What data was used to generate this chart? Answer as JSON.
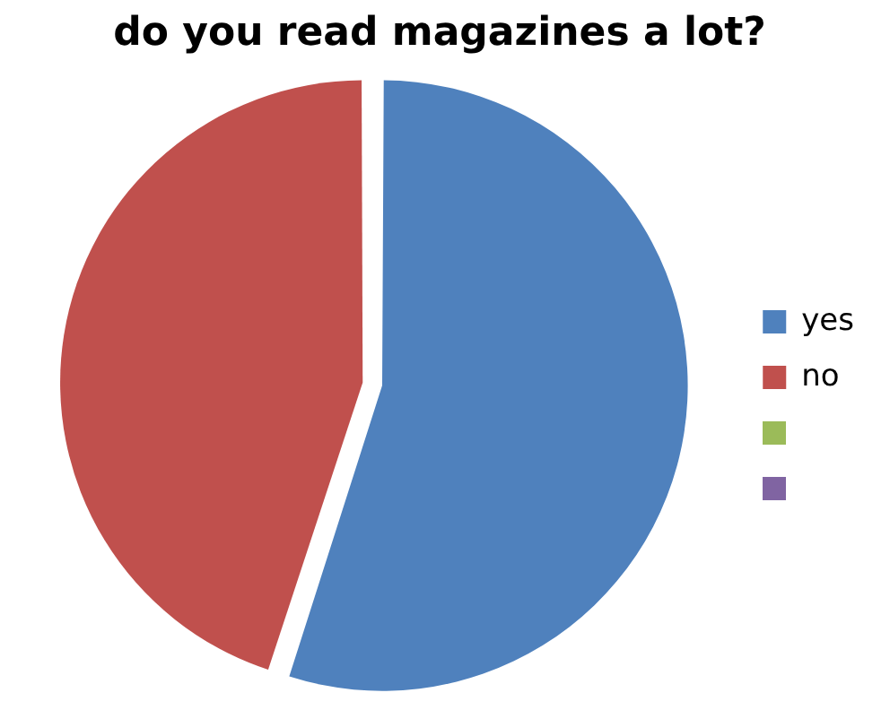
{
  "chart_data": {
    "type": "pie",
    "title": "do you read magazines a lot?",
    "categories": [
      "yes",
      "no"
    ],
    "values": [
      55,
      45
    ],
    "colors": [
      "#4f81bd",
      "#c0504d"
    ],
    "legend": "right"
  }
}
